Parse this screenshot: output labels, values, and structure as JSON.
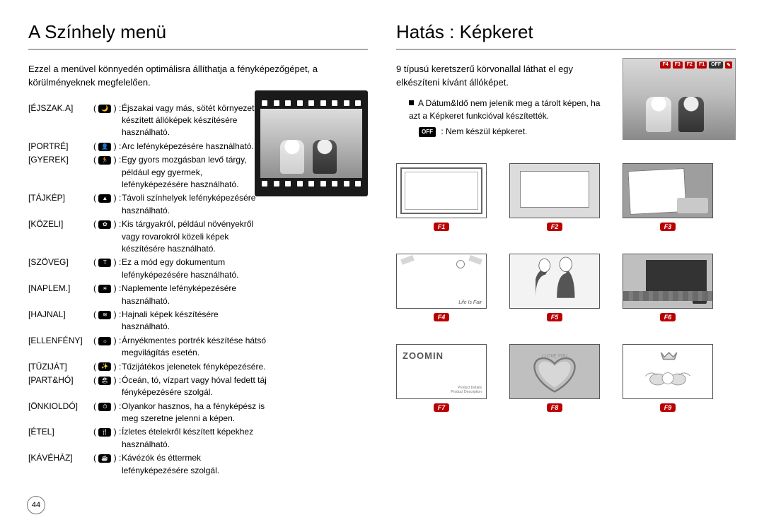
{
  "page_number": "44",
  "left": {
    "title": "A Színhely menü",
    "intro": "Ezzel a menüvel könnyedén optimálisra állíthatja a fényképezőgépet, a körülményeknek megfelelően.",
    "items": [
      {
        "label": "[ÉJSZAK.A]",
        "glyph": "🌙",
        "desc": "Éjszakai vagy más, sötét környezetben készített állóképek készítésére használható."
      },
      {
        "label": "[PORTRÉ]",
        "glyph": "👤",
        "desc": "Arc lefényképezésére használható."
      },
      {
        "label": "[GYEREK]",
        "glyph": "🏃",
        "desc": "Egy gyors mozgásban levő tárgy, például egy gyermek, lefényképezésére használható."
      },
      {
        "label": "[TÁJKÉP]",
        "glyph": "▲",
        "desc": "Távoli színhelyek lefényképezésére használható."
      },
      {
        "label": "[KÖZELI]",
        "glyph": "✿",
        "desc": "Kis tárgyakról, például növényekről vagy rovarokról közeli képek készítésére használható."
      },
      {
        "label": "[SZÖVEG]",
        "glyph": "T",
        "desc": "Ez a mód egy dokumentum lefényképezésére használható."
      },
      {
        "label": "[NAPLEM.]",
        "glyph": "☀",
        "desc": "Naplemente lefényképezésére használható."
      },
      {
        "label": "[HAJNAL]",
        "glyph": "≋",
        "desc": "Hajnali képek készítésére használható."
      },
      {
        "label": "[ELLENFÉNY]",
        "glyph": "☼",
        "desc": "Árnyékmentes portrék készítése hátsó megvilágítás esetén."
      },
      {
        "label": "[TŰZIJÁT]",
        "glyph": "✨",
        "desc": "Tűzijátékos jelenetek fényképezésére."
      },
      {
        "label": "[PART&HÓ]",
        "glyph": "🏖",
        "desc": "Óceán, tó, vízpart vagy hóval fedett táj fényképezésére szolgál."
      },
      {
        "label": "[ÖNKIOLDÓ]",
        "glyph": "⏱",
        "desc": "Olyankor hasznos, ha a fényképész is meg szeretne jelenni a képen."
      },
      {
        "label": "[ÉTEL]",
        "glyph": "🍴",
        "desc": "Ízletes ételekről készített képekhez használható."
      },
      {
        "label": "[KÁVÉHÁZ]",
        "glyph": "☕",
        "desc": "Kávézók és éttermek lefényképezésére szolgál."
      }
    ]
  },
  "right": {
    "title": "Hatás : Képkeret",
    "intro": "9 típusú keretszerű körvonallal láthat el egy elkészíteni kívánt állóképet.",
    "note1": "A Dátum&Idő nem jelenik meg a tárolt képen, ha azt a Képkeret funkcióval készítették.",
    "off_label": "OFF",
    "note2": "Nem készül képkeret.",
    "lcd_badges": [
      "F4",
      "F3",
      "F2",
      "F1",
      "OFF"
    ],
    "frames": [
      {
        "id": "F1"
      },
      {
        "id": "F2"
      },
      {
        "id": "F3"
      },
      {
        "id": "F4"
      },
      {
        "id": "F5"
      },
      {
        "id": "F6"
      },
      {
        "id": "F7"
      },
      {
        "id": "F8"
      },
      {
        "id": "F9"
      }
    ],
    "f7_brand": "ZOOMIN",
    "f7_small": "Product Details\nProduct Description",
    "f8_text": "I LOVE YOU"
  },
  "colors": {
    "rule": "#a9a9a9",
    "badge": "#b00000"
  }
}
